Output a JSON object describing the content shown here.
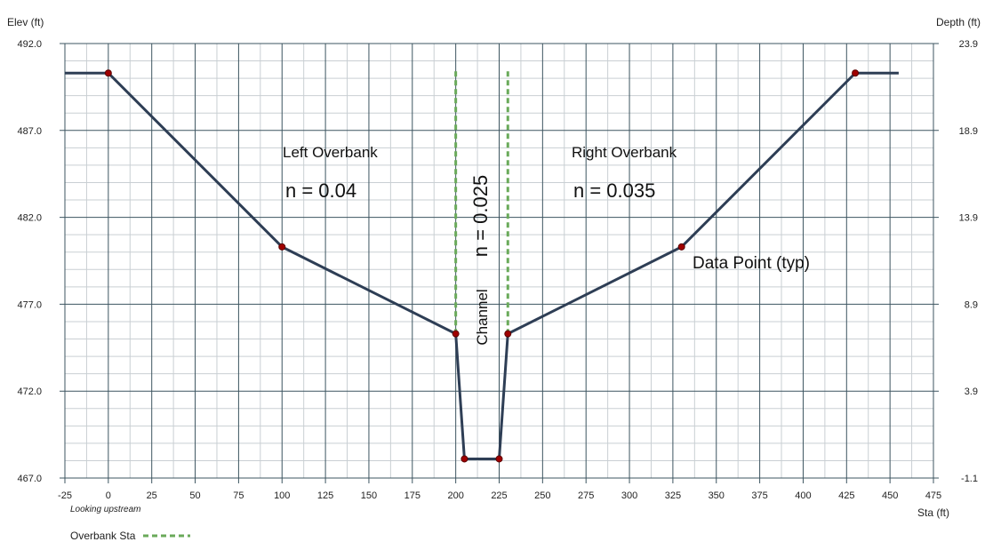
{
  "chart_data": {
    "type": "line",
    "axes": {
      "left_label": "Elev (ft)",
      "right_label": "Depth (ft)",
      "x_label": "Sta (ft)",
      "x_range": [
        -25,
        475
      ],
      "y_range": [
        467.0,
        492.0
      ],
      "x_ticks": [
        "-25",
        "0",
        "25",
        "50",
        "75",
        "100",
        "125",
        "150",
        "175",
        "200",
        "225",
        "250",
        "275",
        "300",
        "325",
        "350",
        "375",
        "400",
        "425",
        "450",
        "475"
      ],
      "y_ticks": [
        "492.0",
        "487.0",
        "482.0",
        "477.0",
        "472.0",
        "467.0"
      ],
      "right_ticks": [
        "23.9",
        "18.9",
        "13.9",
        "8.9",
        "3.9",
        "-1.1"
      ],
      "grid": true
    },
    "note": "Looking upstream",
    "series": [
      {
        "kind": "profile",
        "color": "#2e3e55",
        "x": [
          -25,
          0,
          100,
          200,
          205,
          225,
          230,
          330,
          430,
          455
        ],
        "y": [
          490.3,
          490.3,
          480.3,
          475.3,
          468.1,
          468.1,
          475.3,
          480.3,
          490.3,
          490.3
        ]
      },
      {
        "kind": "data_points",
        "color": "#a00000",
        "x": [
          0,
          100,
          200,
          205,
          225,
          230,
          330,
          430
        ],
        "y": [
          490.3,
          480.3,
          475.3,
          468.1,
          468.1,
          475.3,
          480.3,
          490.3
        ]
      }
    ],
    "overbank_stations": {
      "name": "Overbank Sta",
      "color": "#6aaa5a",
      "x": [
        200,
        230
      ],
      "y_range": [
        475.3,
        490.4
      ]
    },
    "legend": {
      "placement": "bottom-left",
      "entries": [
        "Overbank Sta"
      ]
    },
    "annotations": {
      "left_overbank": "Left Overbank",
      "left_n": "n = 0.04",
      "right_overbank": "Right Overbank",
      "right_n": "n = 0.035",
      "channel_n": "n = 0.025",
      "channel": "Channel",
      "data_point": "Data Point (typ)"
    }
  }
}
